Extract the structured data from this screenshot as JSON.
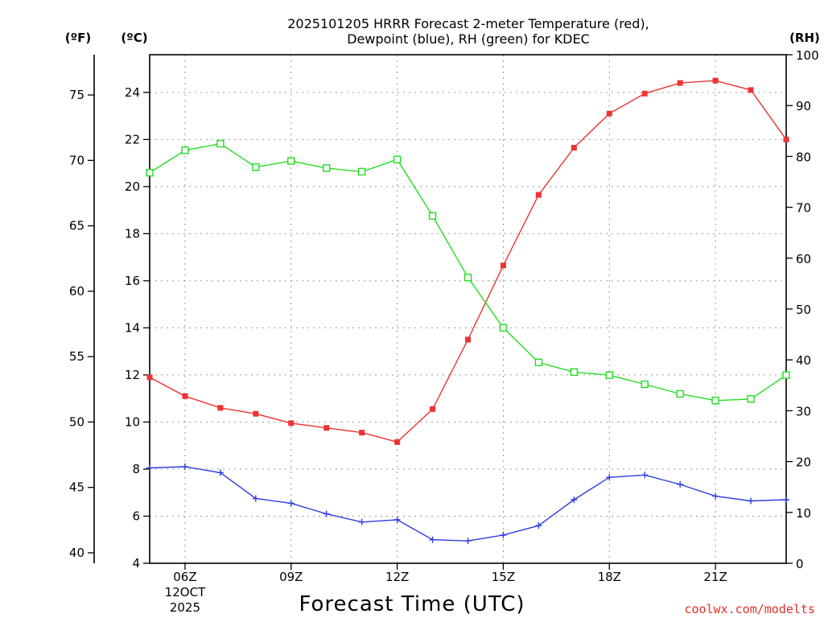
{
  "chart_data": {
    "type": "line",
    "title_line1": "2025101205 HRRR Forecast 2-meter Temperature (red),",
    "title_line2": "Dewpoint (blue), RH (green) for KDEC",
    "xlabel": "Forecast Time (UTC)",
    "left_outer_unit": "(ºF)",
    "left_inner_unit": "(ºC)",
    "right_unit": "(RH)",
    "credit": "coolwx.com/modelts",
    "x": [
      "05Z",
      "06Z",
      "07Z",
      "08Z",
      "09Z",
      "10Z",
      "11Z",
      "12Z",
      "13Z",
      "14Z",
      "15Z",
      "16Z",
      "17Z",
      "18Z",
      "19Z",
      "20Z",
      "21Z",
      "22Z",
      "23Z"
    ],
    "x_tick_labels": [
      {
        "label": "06Z",
        "index": 1,
        "sub1": "12OCT",
        "sub2": "2025"
      },
      {
        "label": "09Z",
        "index": 4
      },
      {
        "label": "12Z",
        "index": 7
      },
      {
        "label": "15Z",
        "index": 10
      },
      {
        "label": "18Z",
        "index": 13
      },
      {
        "label": "21Z",
        "index": 16
      }
    ],
    "celsius_axis": {
      "ylim": [
        4,
        25.6
      ],
      "ticks": [
        "4",
        "6",
        "8",
        "10",
        "12",
        "14",
        "16",
        "18",
        "20",
        "22",
        "24"
      ]
    },
    "fahrenheit_axis": {
      "ticks": [
        "40",
        "45",
        "50",
        "55",
        "60",
        "65",
        "70",
        "75"
      ]
    },
    "rh_axis": {
      "ylim": [
        0,
        100
      ],
      "ticks": [
        "0",
        "10",
        "20",
        "30",
        "40",
        "50",
        "60",
        "70",
        "80",
        "90",
        "100"
      ]
    },
    "series": [
      {
        "name": "Temperature",
        "unit": "C",
        "axis": "celsius",
        "color": "#ee3333",
        "marker": "filled-square",
        "values": [
          11.9,
          11.1,
          10.6,
          10.35,
          9.95,
          9.75,
          9.55,
          9.15,
          10.55,
          13.5,
          16.65,
          19.65,
          21.65,
          23.1,
          23.95,
          24.4,
          24.5,
          24.1,
          22.0
        ]
      },
      {
        "name": "Dewpoint",
        "unit": "C",
        "axis": "celsius",
        "color": "#2e3ddd",
        "marker": "plus",
        "values": [
          8.05,
          8.1,
          7.85,
          6.75,
          6.55,
          6.1,
          5.75,
          5.85,
          5.0,
          4.95,
          5.2,
          5.6,
          6.7,
          7.65,
          7.75,
          7.35,
          6.85,
          6.65,
          6.7
        ]
      },
      {
        "name": "RH",
        "unit": "%",
        "axis": "rh",
        "color": "#22dd22",
        "marker": "open-square",
        "values": [
          76.8,
          81.2,
          82.5,
          77.9,
          79.1,
          77.7,
          77.0,
          79.4,
          68.3,
          56.2,
          46.3,
          39.5,
          37.6,
          37.0,
          35.2,
          33.3,
          32.0,
          32.3,
          37.0
        ]
      }
    ]
  }
}
